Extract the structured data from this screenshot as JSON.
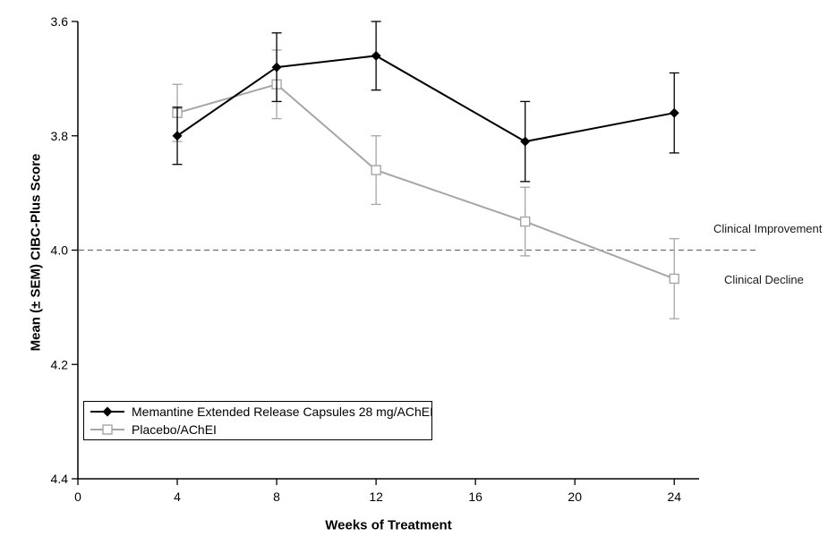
{
  "figure": {
    "xlabel": "Weeks of Treatment",
    "ylabel": "Mean (± SEM) CIBC-Plus Score"
  },
  "annotations": {
    "improvement": "Clinical Improvement",
    "decline": "Clinical Decline"
  },
  "chart_data": {
    "type": "line",
    "title": "",
    "xlabel": "Weeks of Treatment",
    "ylabel": "Mean (± SEM) CIBC-Plus Score",
    "x": [
      4,
      8,
      12,
      18,
      24
    ],
    "x_ticks": [
      0,
      4,
      8,
      12,
      16,
      20,
      24
    ],
    "xlim": [
      0,
      25
    ],
    "y_ticks": [
      3.6,
      3.8,
      4.0,
      4.2,
      4.4
    ],
    "ylim": [
      3.6,
      4.4
    ],
    "y_axis_direction": "inverted (3.6 at top, 4.4 at bottom; lower score = improvement)",
    "grid": false,
    "legend_position": "boxed, bottom-left inside plot",
    "reference_line": {
      "y": 4.0,
      "style": "dashed",
      "color": "#6e6e6e",
      "label_above": "Clinical Improvement",
      "label_below": "Clinical Decline"
    },
    "series": [
      {
        "name": "Memantine Extended Release Capsules 28 mg/AChEI",
        "marker": "filled-diamond",
        "color": "#000000",
        "values": [
          3.8,
          3.68,
          3.66,
          3.81,
          3.76
        ],
        "sem": [
          0.05,
          0.06,
          0.06,
          0.07,
          0.07
        ]
      },
      {
        "name": "Placebo/AChEI",
        "marker": "open-square",
        "color": "#a6a6a6",
        "values": [
          3.76,
          3.71,
          3.86,
          3.95,
          4.05
        ],
        "sem": [
          0.05,
          0.06,
          0.06,
          0.06,
          0.07
        ]
      }
    ]
  }
}
